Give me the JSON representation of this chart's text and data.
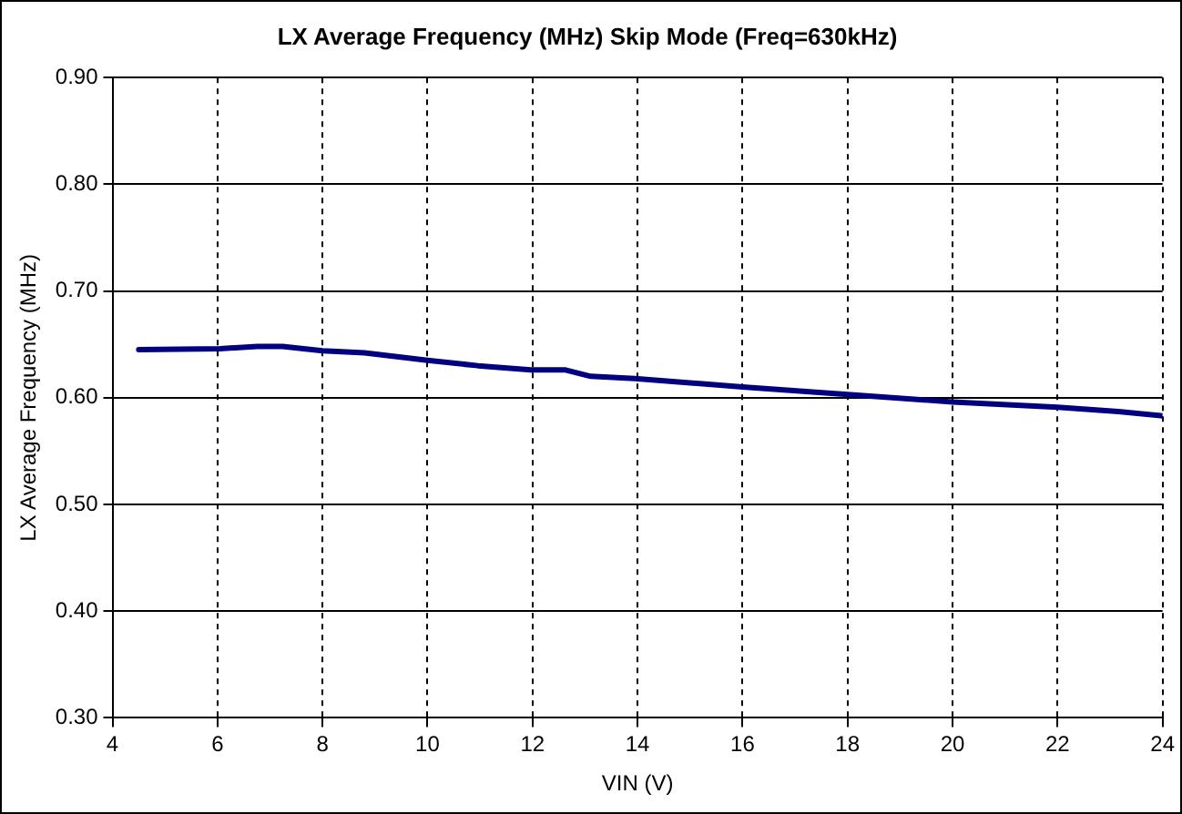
{
  "chart_data": {
    "type": "line",
    "title": "LX Average Frequency (MHz) Skip Mode (Freq=630kHz)",
    "xlabel": "VIN (V)",
    "ylabel": "LX Average Frequency (MHz)",
    "x": [
      4.5,
      6.05,
      6.76,
      7.24,
      8.0,
      8.8,
      10.0,
      10.96,
      11.97,
      12.63,
      13.11,
      13.95,
      16.0,
      18.0,
      20.0,
      22.0,
      23.16,
      24.0
    ],
    "series": [
      {
        "color": "#000080",
        "values": [
          0.645,
          0.646,
          0.648,
          0.648,
          0.644,
          0.642,
          0.635,
          0.63,
          0.626,
          0.626,
          0.62,
          0.618,
          0.61,
          0.603,
          0.596,
          0.591,
          0.587,
          0.583
        ]
      }
    ],
    "xlim": [
      4,
      24
    ],
    "xticks": [
      4,
      6,
      8,
      10,
      12,
      14,
      16,
      18,
      20,
      22,
      24
    ],
    "ylim": [
      0.3,
      0.9
    ],
    "yticks": [
      {
        "value": 0.3,
        "label": "0.30"
      },
      {
        "value": 0.4,
        "label": "0.40"
      },
      {
        "value": 0.5,
        "label": "0.50"
      },
      {
        "value": 0.6,
        "label": "0.60"
      },
      {
        "value": 0.7,
        "label": "0.70"
      },
      {
        "value": 0.8,
        "label": "0.80"
      },
      {
        "value": 0.9,
        "label": "0.90"
      }
    ],
    "grid": true,
    "legend": false,
    "marker": "none",
    "line_style": "solid"
  }
}
